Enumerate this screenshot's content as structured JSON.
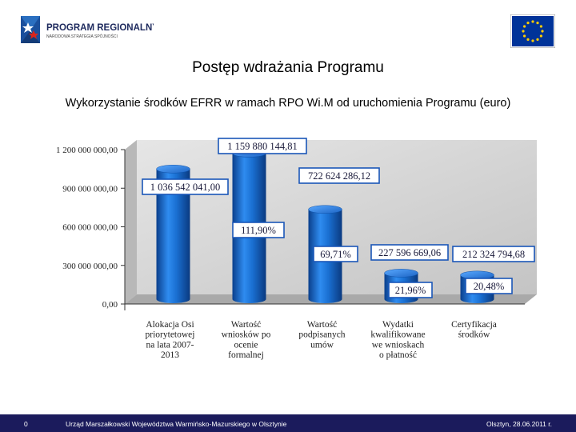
{
  "header": {
    "logo_text": "PROGRAM REGIONALNY",
    "logo_subtext": "NARODOWA STRATEGIA SPÓJNOŚCI",
    "title": "Postęp wdrażania Programu",
    "subtitle": "Wykorzystanie środków EFRR w ramach RPO Wi.M od uruchomienia Programu (euro)"
  },
  "chart_data": {
    "type": "bar",
    "title": "",
    "categories": [
      [
        "Alokacja Osi",
        "priorytetowej",
        "na lata 2007-",
        "2013"
      ],
      [
        "Wartość",
        "wniosków po",
        "ocenie",
        "formalnej"
      ],
      [
        "Wartość",
        "podpisanych",
        "umów"
      ],
      [
        "Wydatki",
        "kwalifikowane",
        "we wnioskach",
        "o płatność"
      ],
      [
        "Certyfikacja",
        "środków"
      ]
    ],
    "values": [
      1036542041.0,
      1159880144.81,
      722624286.12,
      227596669.06,
      212324794.68
    ],
    "value_labels": [
      "1 036 542 041,00",
      "1 159 880 144,81",
      "722 624 286,12",
      "227 596 669,06",
      "212 324 794,68"
    ],
    "percent_labels": [
      "",
      "111,90%",
      "69,71%",
      "21,96%",
      "20,48%"
    ],
    "ylim": [
      0,
      1200000000
    ],
    "yticks": [
      0,
      300000000,
      600000000,
      900000000,
      1200000000
    ],
    "ytick_labels": [
      "0,00",
      "300 000 000,00",
      "600 000 000,00",
      "900 000 000,00",
      "1 200 000 000,00"
    ],
    "xlabel": "",
    "ylabel": "",
    "bar_color": "#1a6fd1",
    "grid": false
  },
  "footer": {
    "page_number": "0",
    "center": "Urząd Marszałkowski Województwa Warmińsko-Mazurskiego w Olsztynie",
    "right": "Olsztyn, 28.06.2011 r."
  },
  "colors": {
    "footer_bg": "#1b1b5c",
    "eu_blue": "#003399",
    "eu_star": "#ffcc00",
    "wall": "#d9d9d9"
  }
}
